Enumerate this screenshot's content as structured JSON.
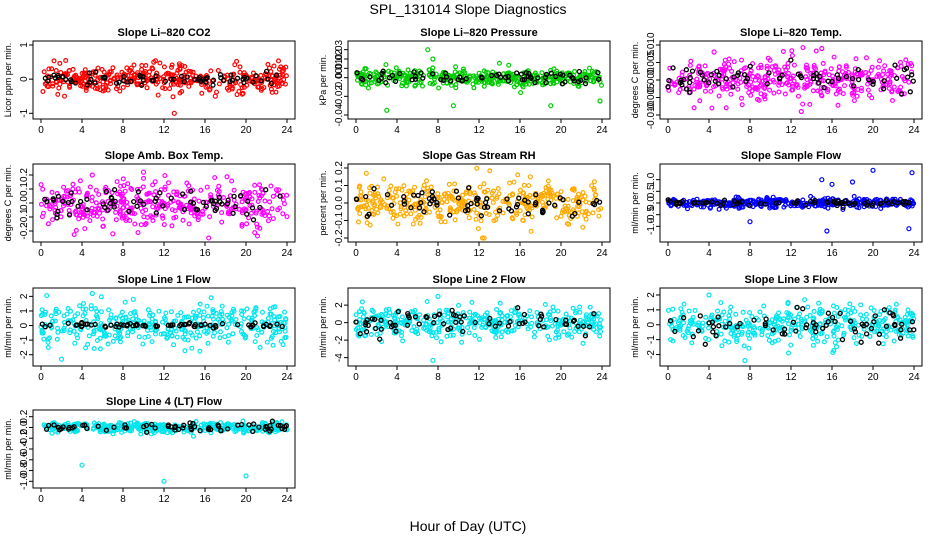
{
  "figure": {
    "title": "SPL_131014  Slope Diagnostics",
    "xlabel": "Hour of Day (UTC)"
  },
  "chart_data": [
    {
      "type": "scatter",
      "title": "Slope Li–820 CO2",
      "ylabel": "Licor ppm per min.",
      "xlim": [
        0,
        24
      ],
      "ylim": [
        -1.05,
        1.0
      ],
      "xticks": [
        0,
        4,
        8,
        12,
        16,
        20,
        24
      ],
      "yticks": [
        -1,
        0,
        1
      ],
      "ytick_labels": [
        "-1",
        "0",
        "1"
      ],
      "color": "#ff0000",
      "spread": 0.25,
      "overlay_spread": 0.12,
      "outliers": [
        [
          13,
          -1.0
        ],
        [
          17,
          -0.5
        ],
        [
          11,
          0.5
        ],
        [
          13.5,
          0.45
        ]
      ]
    },
    {
      "type": "scatter",
      "title": "Slope Li–820 Pressure",
      "ylabel": "kPa per min.",
      "xlim": [
        0,
        24
      ],
      "ylim": [
        -0.04,
        0.035
      ],
      "xticks": [
        0,
        4,
        8,
        12,
        16,
        20,
        24
      ],
      "yticks": [
        -0.04,
        -0.02,
        0,
        0.01,
        0.02,
        0.03
      ],
      "ytick_labels": [
        "-0.04",
        "-0.02",
        "0.00",
        "0.01",
        "0.02",
        "0.03"
      ],
      "color": "#00cc00",
      "spread": 0.006,
      "overlay_spread": 0.004,
      "outliers": [
        [
          7,
          0.03
        ],
        [
          9.5,
          -0.03
        ],
        [
          3,
          -0.035
        ],
        [
          23.8,
          -0.025
        ],
        [
          7.5,
          0.02
        ],
        [
          19,
          -0.03
        ]
      ]
    },
    {
      "type": "scatter",
      "title": "Slope Li–820 Temp.",
      "ylabel": "degrees C per min.",
      "xlim": [
        0,
        24
      ],
      "ylim": [
        -0.01,
        0.01
      ],
      "xticks": [
        0,
        4,
        8,
        12,
        16,
        20,
        24
      ],
      "yticks": [
        -0.01,
        -0.005,
        0,
        0.005,
        0.01
      ],
      "ytick_labels": [
        "-0.010",
        "-0.005",
        "0.000",
        "0.005",
        "0.010"
      ],
      "color": "#ff00ff",
      "spread": 0.004,
      "overlay_spread": 0.0025,
      "outliers": [
        [
          13,
          -0.009
        ],
        [
          15,
          0.009
        ],
        [
          4.5,
          0.008
        ]
      ]
    },
    {
      "type": "scatter",
      "title": "Slope Amb. Box Temp.",
      "ylabel": "degrees C per min.",
      "xlim": [
        0,
        24
      ],
      "ylim": [
        -0.25,
        0.25
      ],
      "xticks": [
        0,
        4,
        8,
        12,
        16,
        20,
        24
      ],
      "yticks": [
        -0.2,
        -0.1,
        0,
        0.1,
        0.2
      ],
      "ytick_labels": [
        "-0.2",
        "-0.1",
        "0.0",
        "0.1",
        "0.2"
      ],
      "color": "#ff00ff",
      "spread": 0.1,
      "overlay_spread": 0.06,
      "outliers": [
        [
          7,
          -0.22
        ],
        [
          10,
          0.22
        ],
        [
          5,
          0.2
        ]
      ]
    },
    {
      "type": "scatter",
      "title": "Slope Gas Stream RH",
      "ylabel": "percent per min.",
      "xlim": [
        0,
        24
      ],
      "ylim": [
        -0.2,
        0.2
      ],
      "xticks": [
        0,
        4,
        8,
        12,
        16,
        20,
        24
      ],
      "yticks": [
        -0.2,
        -0.1,
        0,
        0.1,
        0.2
      ],
      "ytick_labels": [
        "-0.2",
        "-0.1",
        "0.0",
        "0.1",
        "0.2"
      ],
      "color": "#ffaa00",
      "spread": 0.08,
      "overlay_spread": 0.05,
      "outliers": [
        [
          12.5,
          -0.2
        ],
        [
          1,
          0.17
        ],
        [
          17,
          0.15
        ]
      ]
    },
    {
      "type": "scatter",
      "title": "Slope Sample Flow",
      "ylabel": "ml/min per min.",
      "xlim": [
        0,
        24
      ],
      "ylim": [
        -1.5,
        1.5
      ],
      "xticks": [
        0,
        4,
        8,
        12,
        16,
        20,
        24
      ],
      "yticks": [
        -1,
        -0.5,
        0,
        0.5,
        1
      ],
      "ytick_labels": [
        "-1.0",
        "-0.5",
        "0.0",
        "0.5",
        "1.0"
      ],
      "color": "#0000ff",
      "spread": 0.12,
      "overlay_spread": 0.08,
      "outliers": [
        [
          15.5,
          -1.2
        ],
        [
          23.8,
          1.3
        ],
        [
          20,
          1.4
        ],
        [
          15,
          1.0
        ],
        [
          8,
          -0.8
        ],
        [
          18,
          0.9
        ],
        [
          23.5,
          -1.1
        ],
        [
          16,
          0.8
        ]
      ]
    },
    {
      "type": "scatter",
      "title": "Slope Line 1 Flow",
      "ylabel": "ml/min per min.",
      "xlim": [
        0,
        24
      ],
      "ylim": [
        -2.5,
        2.3
      ],
      "xticks": [
        0,
        4,
        8,
        12,
        16,
        20,
        24
      ],
      "yticks": [
        -2,
        -1,
        0,
        1,
        2
      ],
      "ytick_labels": [
        "-2",
        "-1",
        "0",
        "1",
        "2"
      ],
      "color": "#00e5ee",
      "spread": 0.9,
      "overlay_spread": 0.1,
      "outliers": [
        [
          5,
          2.2
        ],
        [
          2,
          -2.3
        ],
        [
          9,
          1.8
        ]
      ]
    },
    {
      "type": "scatter",
      "title": "Slope Line 2 Flow",
      "ylabel": "ml/min per min.",
      "xlim": [
        0,
        24
      ],
      "ylim": [
        -4.5,
        3.5
      ],
      "xticks": [
        0,
        4,
        8,
        12,
        16,
        20,
        24
      ],
      "yticks": [
        -4,
        -2,
        0,
        2
      ],
      "ytick_labels": [
        "-4",
        "-2",
        "0",
        "2"
      ],
      "color": "#00e5ee",
      "spread": 1.1,
      "overlay_spread": 0.8,
      "outliers": [
        [
          7.5,
          -4.3
        ],
        [
          8,
          3.0
        ]
      ]
    },
    {
      "type": "scatter",
      "title": "Slope Line 3 Flow",
      "ylabel": "ml/min per min.",
      "xlim": [
        0,
        24
      ],
      "ylim": [
        -2.5,
        2.2
      ],
      "xticks": [
        0,
        4,
        8,
        12,
        16,
        20,
        24
      ],
      "yticks": [
        -2,
        -1,
        0,
        1,
        2
      ],
      "ytick_labels": [
        "-2",
        "-1",
        "0",
        "1",
        "2"
      ],
      "color": "#00e5ee",
      "spread": 0.8,
      "overlay_spread": 0.7,
      "outliers": [
        [
          7.5,
          -2.4
        ],
        [
          4,
          2.0
        ]
      ]
    },
    {
      "type": "scatter",
      "title": "Slope Line 4 (LT) Flow",
      "ylabel": "ml/min per min.",
      "xlim": [
        0,
        24
      ],
      "ylim": [
        -1.05,
        0.25
      ],
      "xticks": [
        0,
        4,
        8,
        12,
        16,
        20,
        24
      ],
      "yticks": [
        -1.0,
        -0.8,
        -0.6,
        -0.4,
        -0.2,
        0,
        0.2
      ],
      "ytick_labels": [
        "-1.0",
        "-0.8",
        "-0.6",
        "-0.4",
        "-0.2",
        "0.0",
        "0.2"
      ],
      "color": "#00e5ee",
      "spread": 0.06,
      "overlay_spread": 0.05,
      "outliers": [
        [
          4,
          -0.7
        ],
        [
          12,
          -1.0
        ],
        [
          20,
          -0.9
        ]
      ]
    }
  ]
}
